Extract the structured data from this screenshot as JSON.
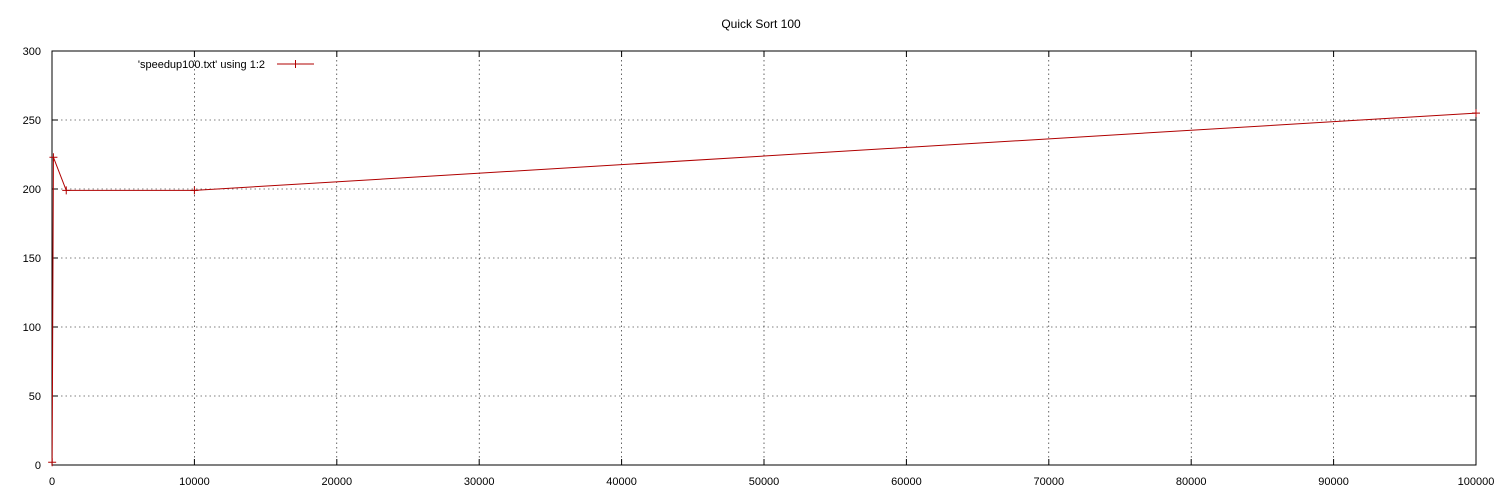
{
  "chart_data": {
    "type": "line",
    "title": "Quick Sort 100",
    "xlabel": "",
    "ylabel": "",
    "xlim": [
      0,
      100000
    ],
    "ylim": [
      0,
      300
    ],
    "x_ticks": [
      0,
      10000,
      20000,
      30000,
      40000,
      50000,
      60000,
      70000,
      80000,
      90000,
      100000
    ],
    "y_ticks": [
      0,
      50,
      100,
      150,
      200,
      250,
      300
    ],
    "grid": true,
    "legend": "top-left",
    "series": [
      {
        "name": "'speedup100.txt' using 1:2",
        "color": "#b00000",
        "x": [
          10,
          100,
          1000,
          10000,
          100000
        ],
        "y": [
          2,
          223,
          199,
          199,
          255
        ]
      }
    ]
  }
}
